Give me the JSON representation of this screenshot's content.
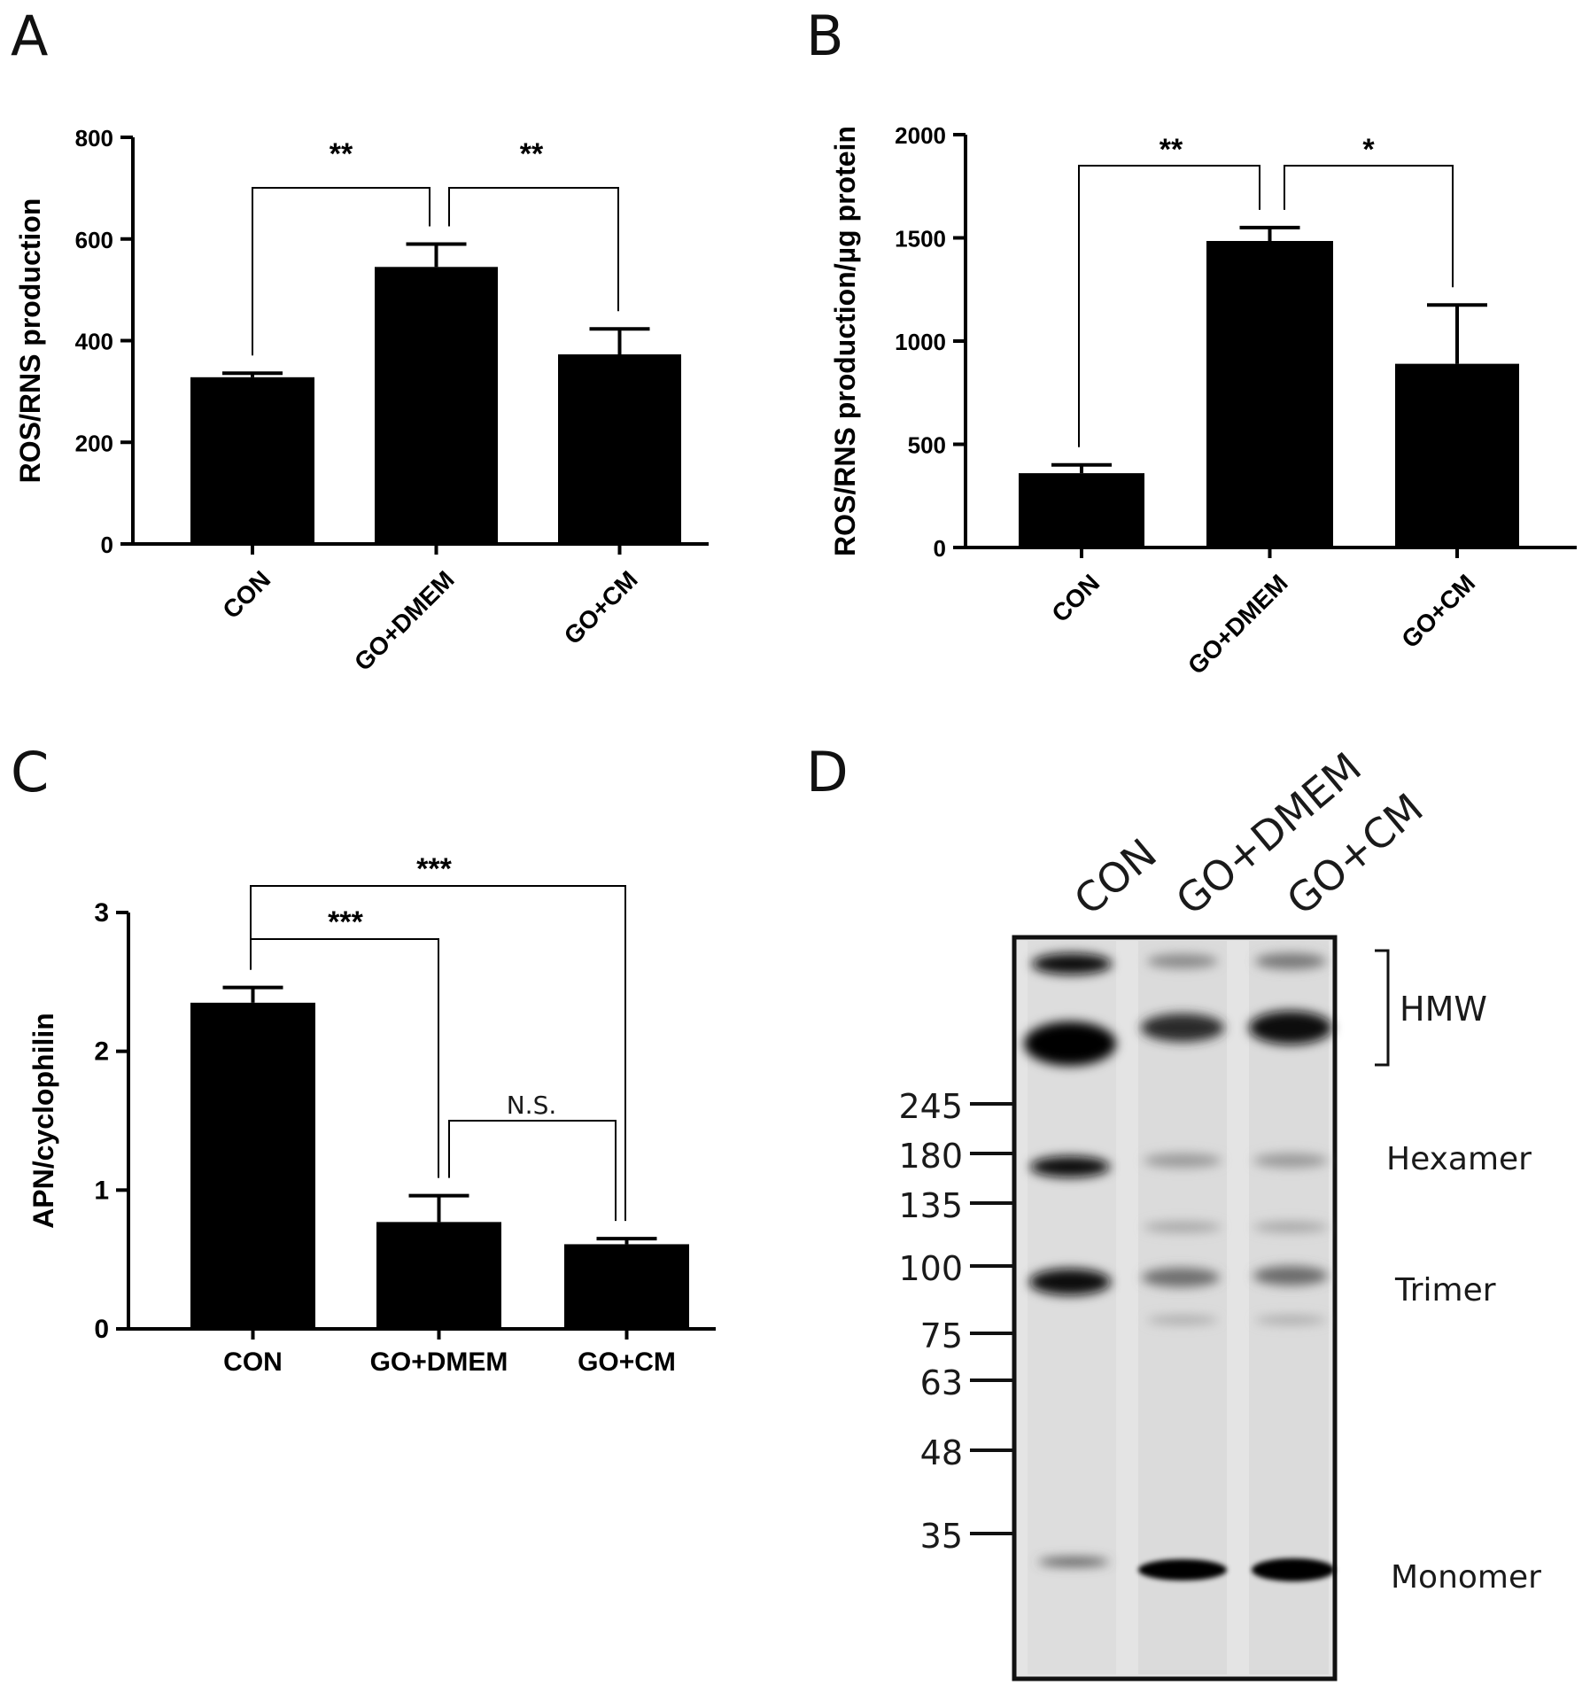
{
  "chart_data": [
    {
      "panel": "A",
      "type": "bar",
      "categories": [
        "CON",
        "GO+DMEM",
        "GO+CM"
      ],
      "values": [
        328,
        545,
        373
      ],
      "errors": [
        8,
        45,
        50
      ],
      "ylabel": "ROS/RNS production",
      "ylim": [
        0,
        800
      ],
      "yticks": [
        0,
        200,
        400,
        600,
        800
      ],
      "x_tick_rotation": -45,
      "significance": [
        {
          "from": 0,
          "to": 1,
          "label": "**"
        },
        {
          "from": 1,
          "to": 2,
          "label": "**"
        }
      ]
    },
    {
      "panel": "B",
      "type": "bar",
      "categories": [
        "CON",
        "GO+DMEM",
        "GO+CM"
      ],
      "values": [
        360,
        1485,
        890
      ],
      "errors": [
        40,
        65,
        285
      ],
      "ylabel": "ROS/RNS production/µg protein",
      "ylim": [
        0,
        2000
      ],
      "yticks": [
        0,
        500,
        1000,
        1500,
        2000
      ],
      "x_tick_rotation": -45,
      "significance": [
        {
          "from": 0,
          "to": 1,
          "label": "**"
        },
        {
          "from": 1,
          "to": 2,
          "label": "*"
        }
      ]
    },
    {
      "panel": "C",
      "type": "bar",
      "categories": [
        "CON",
        "GO+DMEM",
        "GO+CM"
      ],
      "values": [
        2.35,
        0.77,
        0.61
      ],
      "errors": [
        0.11,
        0.19,
        0.04
      ],
      "ylabel": "APN/cyclophilin",
      "ylim": [
        0,
        3
      ],
      "yticks": [
        0,
        1,
        2,
        3
      ],
      "x_tick_rotation": 0,
      "significance": [
        {
          "from": 0,
          "to": 1,
          "label": "***"
        },
        {
          "from": 0,
          "to": 2,
          "label": "***"
        },
        {
          "from": 1,
          "to": 2,
          "label": "N.S."
        }
      ]
    }
  ],
  "blot": {
    "panel": "D",
    "lanes": [
      "CON",
      "GO+DMEM",
      "GO+CM"
    ],
    "markers": [
      "245",
      "180",
      "135",
      "100",
      "75",
      "63",
      "48",
      "35"
    ],
    "band_labels": [
      "HMW",
      "Hexamer",
      "Trimer",
      "Monomer"
    ]
  }
}
